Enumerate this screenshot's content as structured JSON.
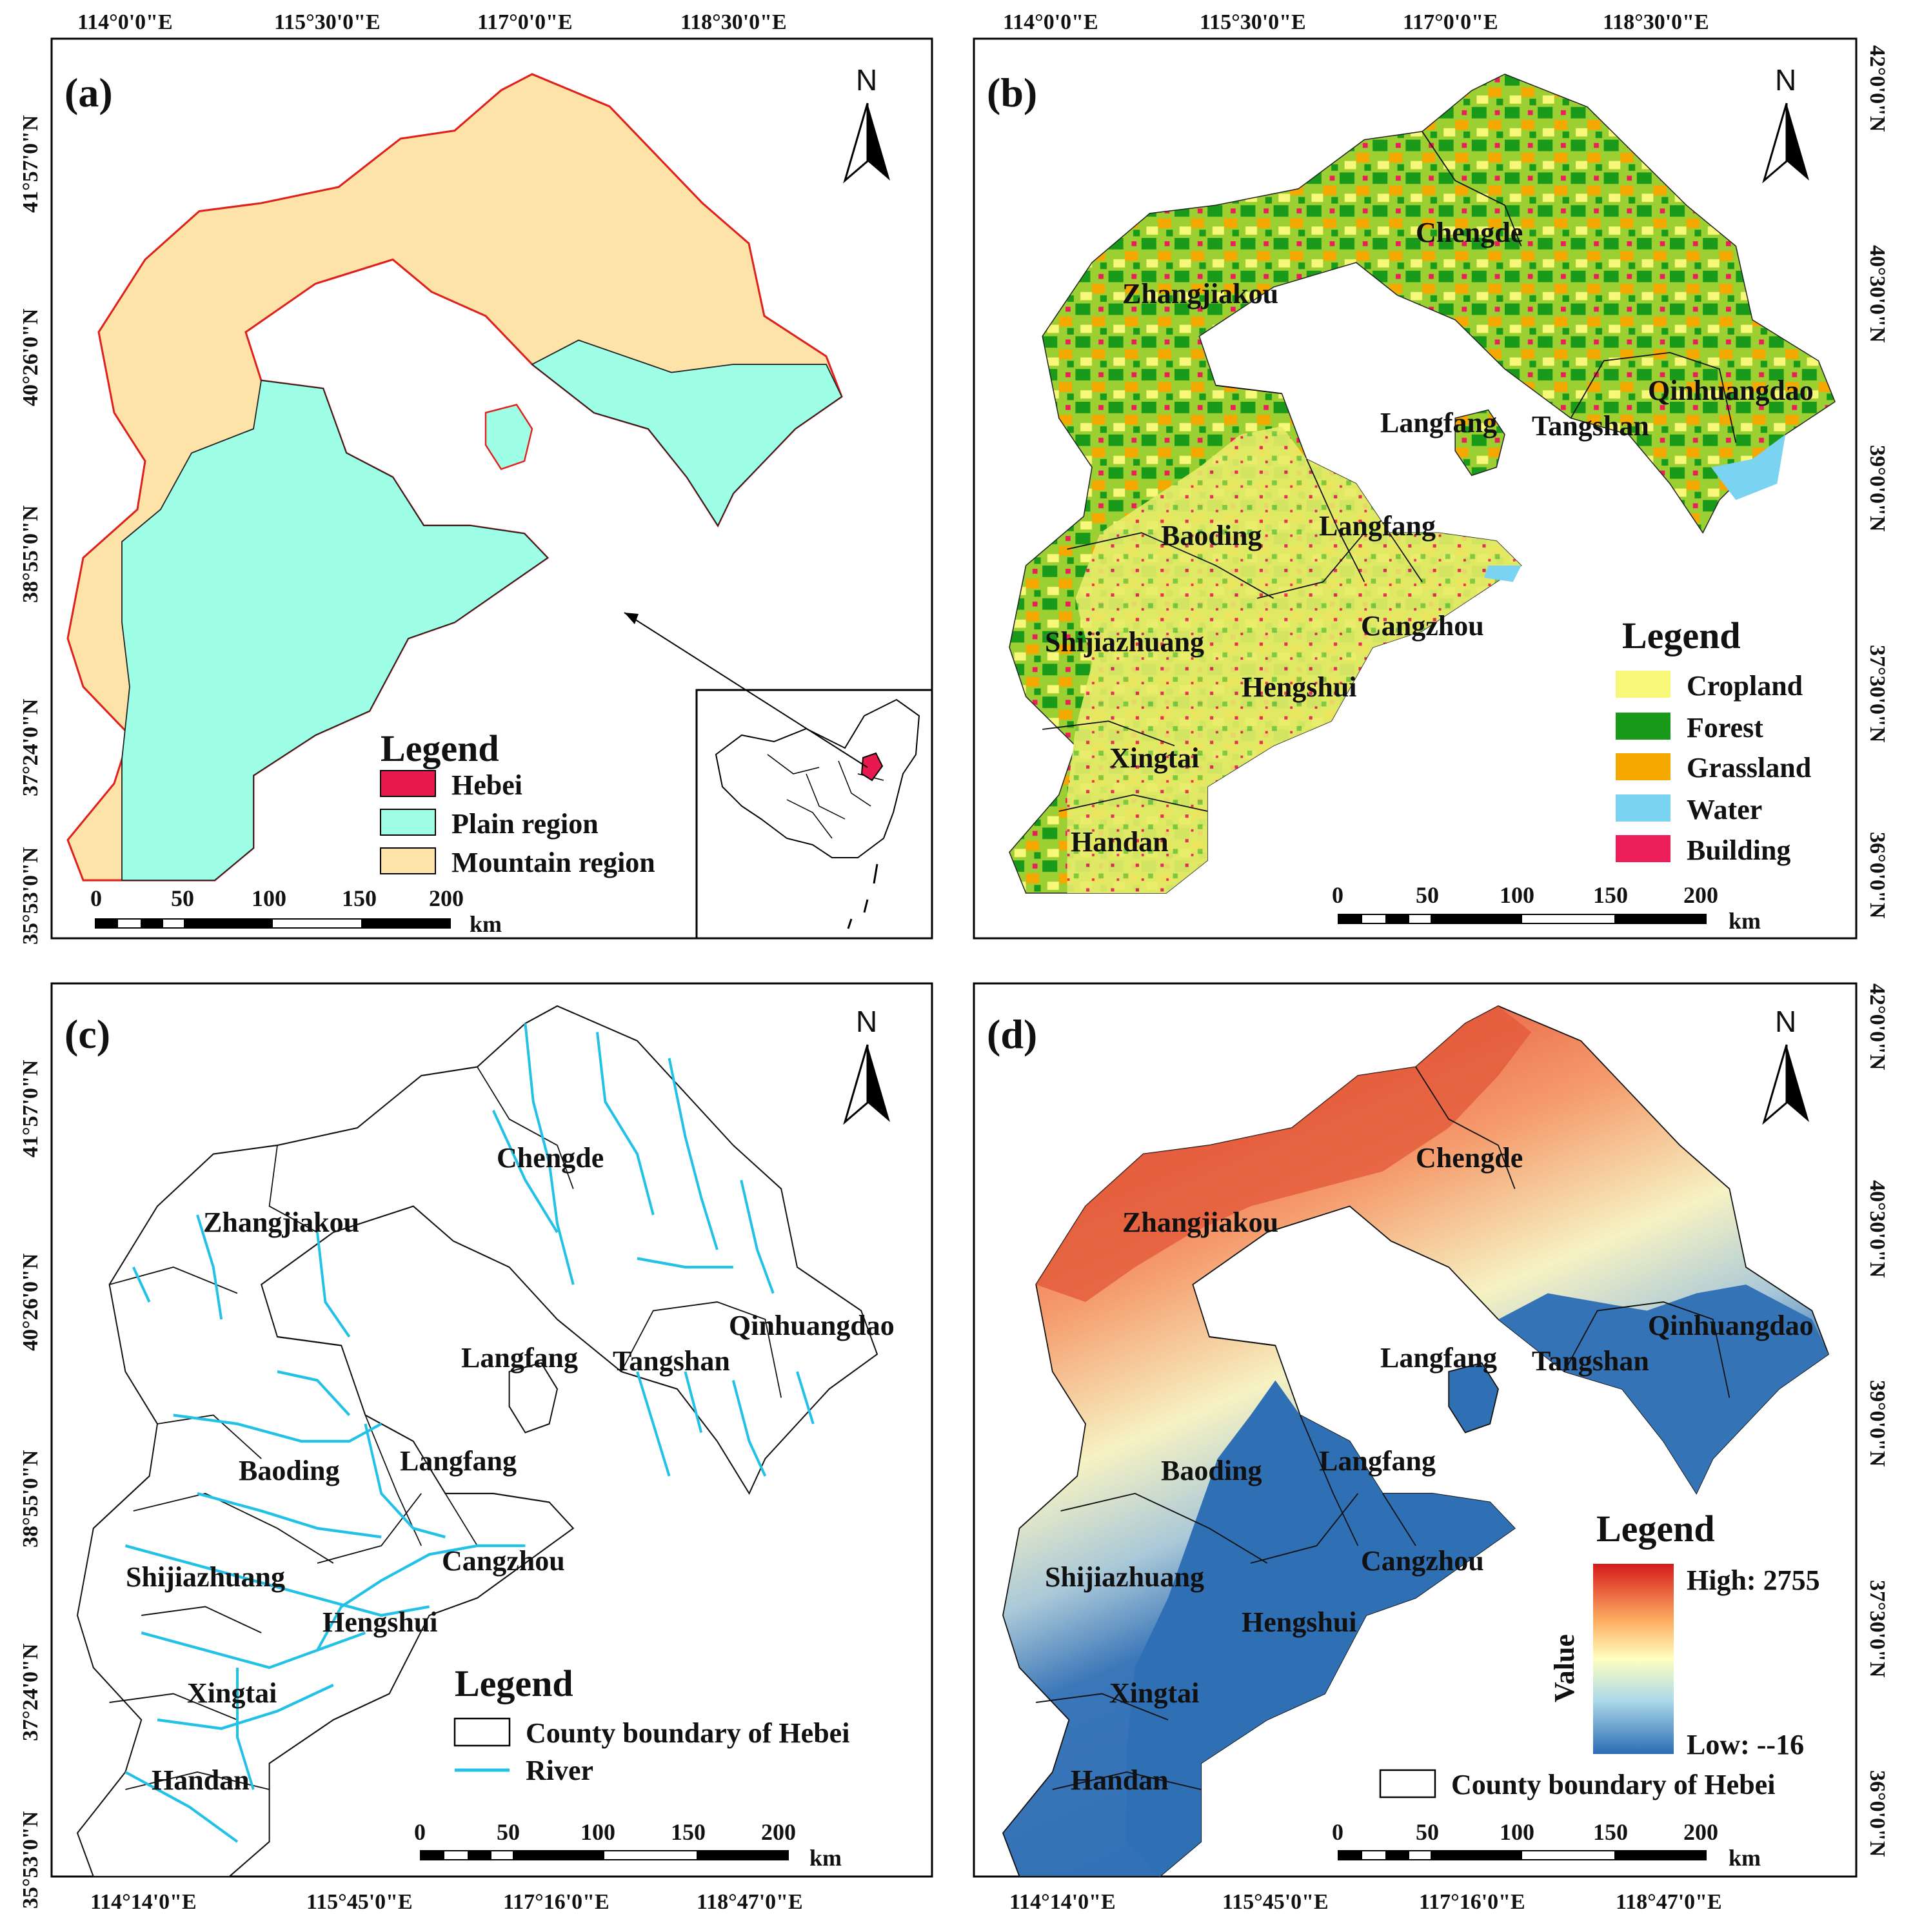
{
  "colors": {
    "hebei": "#e8194e",
    "plain": "#9effe6",
    "mountain": "#fde3a7",
    "boundary_red": "#e0201c",
    "cropland": "#f7f77a",
    "forest": "#1a9a1a",
    "grassland": "#f5a800",
    "water": "#7ad3f0",
    "building": "#ec1e5a",
    "river": "#22c1e6",
    "dem_high": "#d7191c",
    "dem_mid": "#ffffbf",
    "dem_low": "#2b6cb4"
  },
  "panels": {
    "a": {
      "label": "(a)",
      "top_ticks": [
        "114°0'0\"E",
        "115°30'0\"E",
        "117°0'0\"E",
        "118°30'0\"E"
      ],
      "left_ticks": [
        "41°57'0\"N",
        "40°26'0\"N",
        "38°55'0\"N",
        "37°24'0\"N",
        "35°53'0\"N"
      ],
      "north": "N",
      "legend_title": "Legend",
      "legend": [
        "Hebei",
        "Plain region",
        "Mountain region"
      ],
      "scale_numbers": [
        "0",
        "50",
        "100",
        "150",
        "200"
      ],
      "scale_unit": "km"
    },
    "b": {
      "label": "(b)",
      "top_ticks": [
        "114°0'0\"E",
        "115°30'0\"E",
        "117°0'0\"E",
        "118°30'0\"E"
      ],
      "right_ticks": [
        "42°0'0\"N",
        "40°30'0\"N",
        "39°0'0\"N",
        "37°30'0\"N",
        "36°0'0\"N"
      ],
      "north": "N",
      "legend_title": "Legend",
      "legend": [
        "Cropland",
        "Forest",
        "Grassland",
        "Water",
        "Building"
      ],
      "scale_numbers": [
        "0",
        "50",
        "100",
        "150",
        "200"
      ],
      "scale_unit": "km"
    },
    "c": {
      "label": "(c)",
      "bottom_ticks": [
        "114°14'0\"E",
        "115°45'0\"E",
        "117°16'0\"E",
        "118°47'0\"E"
      ],
      "left_ticks": [
        "41°57'0\"N",
        "40°26'0\"N",
        "38°55'0\"N",
        "37°24'0\"N",
        "35°53'0\"N"
      ],
      "north": "N",
      "legend_title": "Legend",
      "legend": [
        "County boundary of Hebei",
        "River"
      ],
      "scale_numbers": [
        "0",
        "50",
        "100",
        "150",
        "200"
      ],
      "scale_unit": "km"
    },
    "d": {
      "label": "(d)",
      "bottom_ticks": [
        "114°14'0\"E",
        "115°45'0\"E",
        "117°16'0\"E",
        "118°47'0\"E"
      ],
      "right_ticks": [
        "42°0'0\"N",
        "40°30'0\"N",
        "39°0'0\"N",
        "37°30'0\"N",
        "36°0'0\"N"
      ],
      "north": "N",
      "legend_title": "Legend",
      "value_axis": "Value",
      "high_label": "High: 2755",
      "low_label": "Low: --16",
      "county_legend": "County boundary of Hebei",
      "scale_numbers": [
        "0",
        "50",
        "100",
        "150",
        "200"
      ],
      "scale_unit": "km"
    }
  },
  "cities": {
    "zhangjiakou": "Zhangjiakou",
    "chengde": "Chengde",
    "qinhuangdao": "Qinhuangdao",
    "langfang_north": "Langfang",
    "tangshan": "Tangshan",
    "baoding": "Baoding",
    "langfang_south": "Langfang",
    "cangzhou": "Cangzhou",
    "shijiazhuang": "Shijiazhuang",
    "hengshui": "Hengshui",
    "xingtai": "Xingtai",
    "handan": "Handan"
  }
}
